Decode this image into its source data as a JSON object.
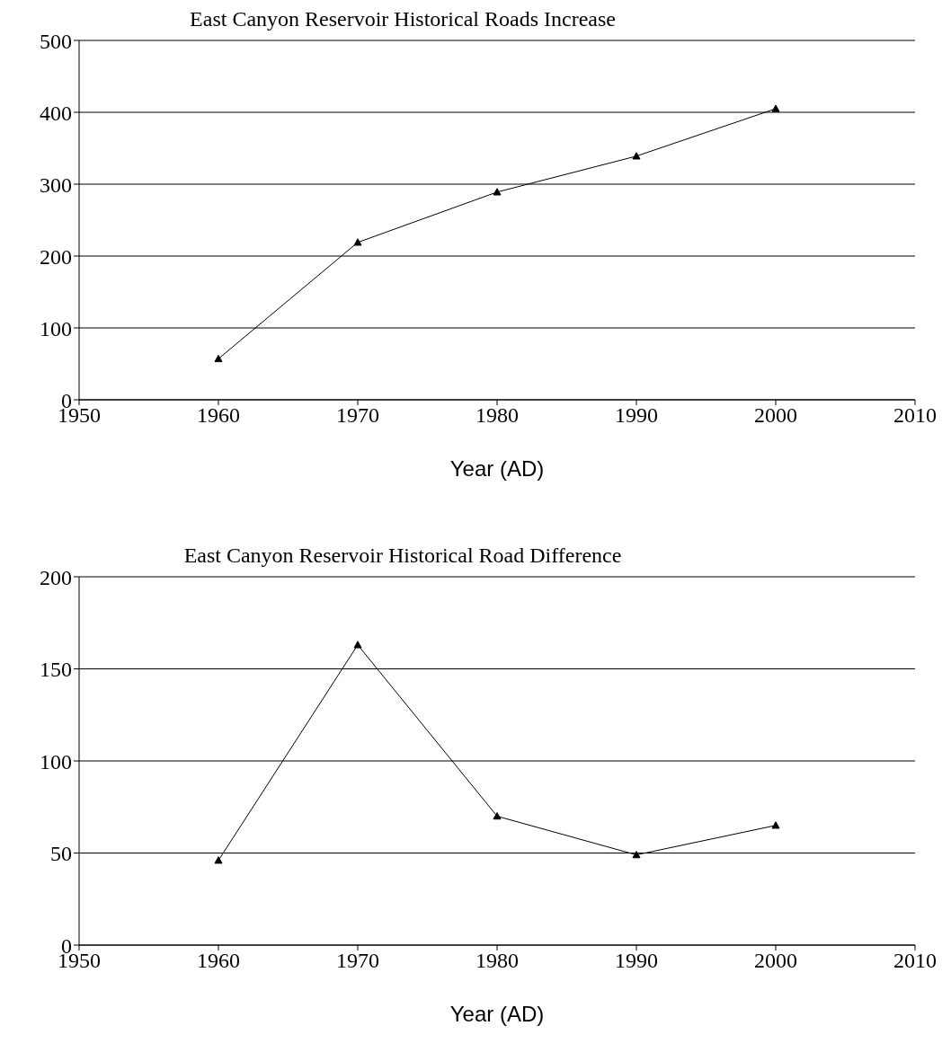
{
  "chart_data": [
    {
      "type": "line",
      "title": "East Canyon Reservoir Historical Roads Increase",
      "xlabel": "Year (AD)",
      "x": [
        1960,
        1970,
        1980,
        1990,
        2000
      ],
      "series": [
        {
          "color": "#000000",
          "values": [
            57,
            219,
            289,
            339,
            405
          ]
        }
      ],
      "xlim": [
        1950,
        2010
      ],
      "xticks": [
        1950,
        1960,
        1970,
        1980,
        1990,
        2000,
        2010
      ],
      "ylim": [
        0,
        500
      ],
      "yticks": [
        0,
        100,
        200,
        300,
        400,
        500
      ],
      "grid": "y",
      "marker": "triangle",
      "line_style": "solid",
      "legend": false
    },
    {
      "type": "line",
      "title": "East Canyon Reservoir Historical Road Difference",
      "xlabel": "Year (AD)",
      "x": [
        1960,
        1970,
        1980,
        1990,
        2000
      ],
      "series": [
        {
          "color": "#000000",
          "values": [
            46,
            163,
            70,
            49,
            65
          ]
        }
      ],
      "xlim": [
        1950,
        2010
      ],
      "xticks": [
        1950,
        1960,
        1970,
        1980,
        1990,
        2000,
        2010
      ],
      "ylim": [
        0,
        200
      ],
      "yticks": [
        0,
        50,
        100,
        150,
        200
      ],
      "grid": "y",
      "marker": "triangle",
      "line_style": "solid",
      "legend": false
    }
  ]
}
